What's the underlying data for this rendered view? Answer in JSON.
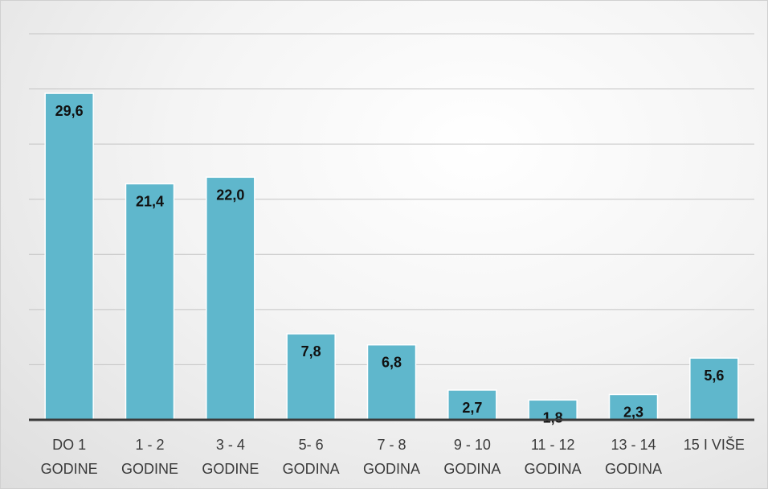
{
  "chart_data": {
    "type": "bar",
    "title": "",
    "xlabel": "",
    "ylabel": "",
    "categories": [
      [
        "DO 1",
        "GODINE"
      ],
      [
        "1 - 2",
        "GODINE"
      ],
      [
        "3 - 4",
        "GODINE"
      ],
      [
        "5- 6",
        "GODINA"
      ],
      [
        "7 - 8",
        "GODINA"
      ],
      [
        "9 - 10",
        "GODINA"
      ],
      [
        "11 - 12",
        "GODINA"
      ],
      [
        "13 - 14",
        "GODINA"
      ],
      [
        "15 I VIŠE",
        ""
      ]
    ],
    "values": [
      29.6,
      21.4,
      22.0,
      7.8,
      6.8,
      2.7,
      1.8,
      2.3,
      5.6
    ],
    "data_labels": [
      "29,6",
      "21,4",
      "22,0",
      "7,8",
      "6,8",
      "2,7",
      "1,8",
      "2,3",
      "5,6"
    ],
    "ylim": [
      0,
      35
    ],
    "gridline_step": 5,
    "grid": true,
    "legend": "none",
    "bar_color": "#5fb7cc",
    "bar_edge_color": "#ffffff",
    "axis_color": "#3a3a3a"
  }
}
